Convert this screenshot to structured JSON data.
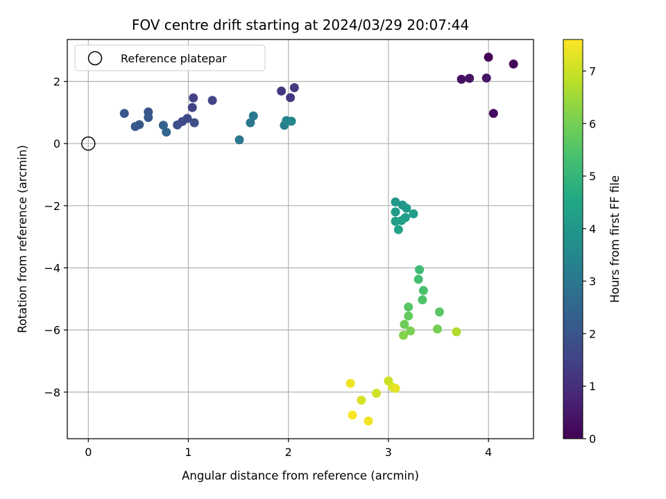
{
  "chart_data": {
    "type": "scatter",
    "title": "FOV centre drift starting at 2024/03/29 20:07:44",
    "xlabel": "Angular distance from reference (arcmin)",
    "ylabel": "Rotation from reference (arcmin)",
    "xlim": [
      -0.21,
      4.45
    ],
    "ylim": [
      -9.5,
      3.35
    ],
    "xticks": [
      0,
      1,
      2,
      3,
      4
    ],
    "yticks": [
      -8,
      -6,
      -4,
      -2,
      0,
      2
    ],
    "grid": true,
    "legend": {
      "location": "top-left",
      "entries": [
        "Reference platepar"
      ]
    },
    "reference_point": {
      "x": 0,
      "y": 0,
      "name": "Reference platepar"
    },
    "colorbar": {
      "label": "Hours from first FF file",
      "colormap": "viridis",
      "range": [
        0,
        7.6
      ],
      "ticks": [
        0,
        1,
        2,
        3,
        4,
        5,
        6,
        7
      ]
    },
    "series": [
      {
        "color_by": "hours",
        "points": [
          {
            "x": 4.0,
            "y": 2.78,
            "c": 0.05
          },
          {
            "x": 4.25,
            "y": 2.56,
            "c": 0.08
          },
          {
            "x": 3.73,
            "y": 2.07,
            "c": 0.35
          },
          {
            "x": 3.81,
            "y": 2.1,
            "c": 0.4
          },
          {
            "x": 3.98,
            "y": 2.11,
            "c": 0.45
          },
          {
            "x": 4.05,
            "y": 0.97,
            "c": 0.2
          },
          {
            "x": 1.93,
            "y": 1.69,
            "c": 1.2
          },
          {
            "x": 2.06,
            "y": 1.8,
            "c": 1.3
          },
          {
            "x": 2.02,
            "y": 1.48,
            "c": 1.25
          },
          {
            "x": 1.05,
            "y": 1.47,
            "c": 1.45
          },
          {
            "x": 1.24,
            "y": 1.39,
            "c": 1.55
          },
          {
            "x": 1.04,
            "y": 1.16,
            "c": 1.5
          },
          {
            "x": 0.99,
            "y": 0.81,
            "c": 1.7
          },
          {
            "x": 0.94,
            "y": 0.71,
            "c": 1.75
          },
          {
            "x": 0.89,
            "y": 0.6,
            "c": 1.8
          },
          {
            "x": 1.06,
            "y": 0.67,
            "c": 1.8
          },
          {
            "x": 0.36,
            "y": 0.97,
            "c": 2.0
          },
          {
            "x": 0.6,
            "y": 1.02,
            "c": 2.0
          },
          {
            "x": 0.6,
            "y": 0.84,
            "c": 2.05
          },
          {
            "x": 0.51,
            "y": 0.61,
            "c": 2.05
          },
          {
            "x": 0.47,
            "y": 0.55,
            "c": 2.1
          },
          {
            "x": 0.75,
            "y": 0.59,
            "c": 2.4
          },
          {
            "x": 0.78,
            "y": 0.37,
            "c": 2.5
          },
          {
            "x": 1.51,
            "y": 0.12,
            "c": 3.0
          },
          {
            "x": 1.62,
            "y": 0.67,
            "c": 3.05
          },
          {
            "x": 1.65,
            "y": 0.89,
            "c": 3.1
          },
          {
            "x": 1.96,
            "y": 0.59,
            "c": 3.3
          },
          {
            "x": 1.98,
            "y": 0.74,
            "c": 3.4
          },
          {
            "x": 2.03,
            "y": 0.72,
            "c": 3.45
          },
          {
            "x": 3.07,
            "y": -1.88,
            "c": 4.0
          },
          {
            "x": 3.14,
            "y": -1.98,
            "c": 4.0
          },
          {
            "x": 3.18,
            "y": -2.08,
            "c": 4.05
          },
          {
            "x": 3.07,
            "y": -2.2,
            "c": 4.1
          },
          {
            "x": 3.25,
            "y": -2.26,
            "c": 4.15
          },
          {
            "x": 3.17,
            "y": -2.38,
            "c": 4.2
          },
          {
            "x": 3.07,
            "y": -2.5,
            "c": 4.2
          },
          {
            "x": 3.13,
            "y": -2.48,
            "c": 4.25
          },
          {
            "x": 3.1,
            "y": -2.77,
            "c": 4.35
          },
          {
            "x": 3.31,
            "y": -4.06,
            "c": 5.2
          },
          {
            "x": 3.3,
            "y": -4.37,
            "c": 5.3
          },
          {
            "x": 3.35,
            "y": -4.73,
            "c": 5.4
          },
          {
            "x": 3.34,
            "y": -5.03,
            "c": 5.45
          },
          {
            "x": 3.2,
            "y": -5.26,
            "c": 5.6
          },
          {
            "x": 3.51,
            "y": -5.42,
            "c": 5.6
          },
          {
            "x": 3.2,
            "y": -5.55,
            "c": 5.75
          },
          {
            "x": 3.16,
            "y": -5.82,
            "c": 5.9
          },
          {
            "x": 3.49,
            "y": -5.97,
            "c": 6.0
          },
          {
            "x": 3.22,
            "y": -6.03,
            "c": 6.05
          },
          {
            "x": 3.15,
            "y": -6.17,
            "c": 6.2
          },
          {
            "x": 3.68,
            "y": -6.06,
            "c": 6.7
          },
          {
            "x": 3.0,
            "y": -7.64,
            "c": 7.0
          },
          {
            "x": 2.62,
            "y": -7.72,
            "c": 7.4
          },
          {
            "x": 3.04,
            "y": -7.84,
            "c": 7.2
          },
          {
            "x": 3.07,
            "y": -7.88,
            "c": 7.3
          },
          {
            "x": 2.88,
            "y": -8.04,
            "c": 7.05
          },
          {
            "x": 2.73,
            "y": -8.26,
            "c": 7.1
          },
          {
            "x": 2.64,
            "y": -8.74,
            "c": 7.55
          },
          {
            "x": 2.8,
            "y": -8.93,
            "c": 7.45
          }
        ]
      }
    ]
  }
}
